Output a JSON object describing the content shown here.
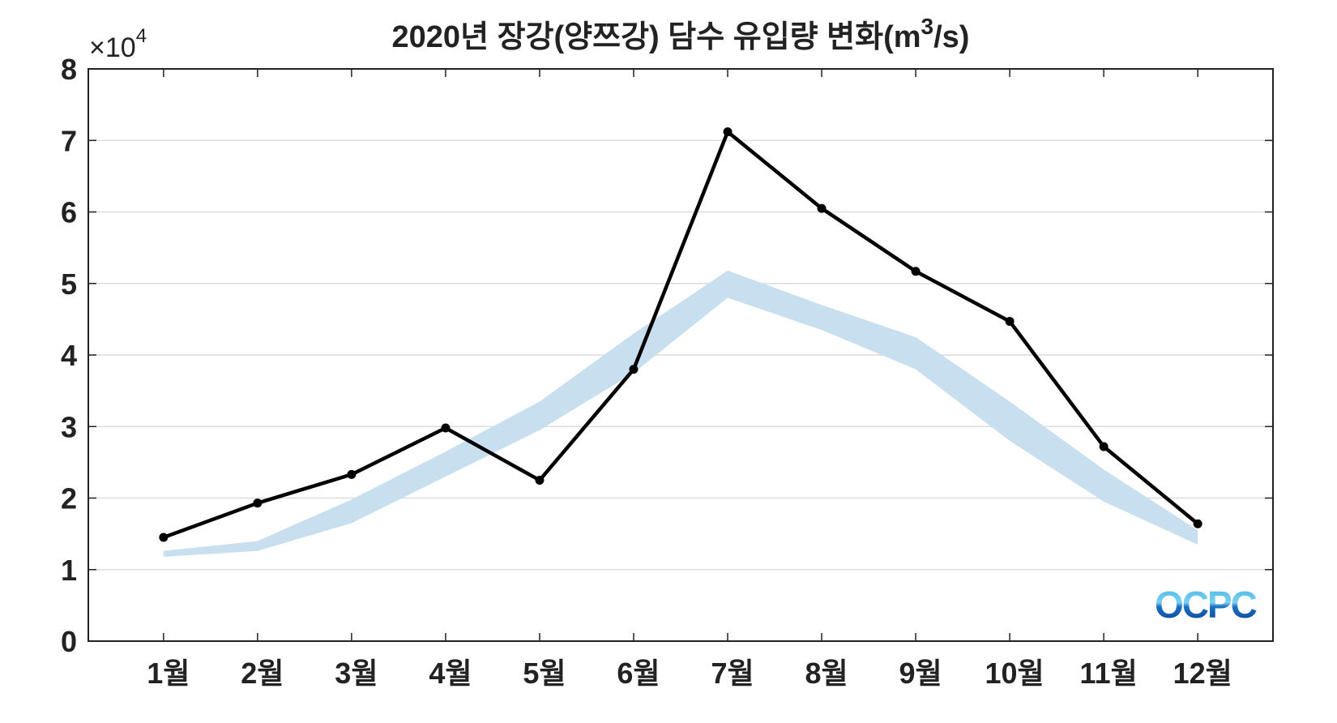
{
  "chart_data": {
    "type": "line",
    "title": "2020년 장강(양쯔강) 담수 유입량 변화(m³/s)",
    "title_main": "2020년 장강(양쯔강) 담수 유입량 변화(m",
    "title_sup": "3",
    "title_end": "/s)",
    "y_multiplier": "×10",
    "y_multiplier_exp": "4",
    "categories": [
      "1월",
      "2월",
      "3월",
      "4월",
      "5월",
      "6월",
      "7월",
      "8월",
      "9월",
      "10월",
      "11월",
      "12월"
    ],
    "xlim": [
      0.2,
      12.8
    ],
    "ylim": [
      0,
      8
    ],
    "yticks": [
      "0",
      "1",
      "2",
      "3",
      "4",
      "5",
      "6",
      "7",
      "8"
    ],
    "grid": "horizontal",
    "series": [
      {
        "values": [
          1.45,
          1.93,
          2.33,
          2.98,
          2.25,
          3.8,
          7.12,
          6.05,
          5.17,
          4.47,
          2.72,
          1.64
        ],
        "color": "#000000",
        "markers": true
      }
    ],
    "band": {
      "lower": [
        1.18,
        1.26,
        1.65,
        2.3,
        2.95,
        3.75,
        4.8,
        4.35,
        3.8,
        2.8,
        1.95,
        1.35
      ],
      "upper": [
        1.26,
        1.4,
        1.98,
        2.65,
        3.35,
        4.3,
        5.18,
        4.7,
        4.25,
        3.35,
        2.4,
        1.55
      ],
      "color": "#c8dff0"
    }
  },
  "logo": {
    "text": "OCPC",
    "colors": [
      "#3ab4e6",
      "#0a3f8f"
    ]
  }
}
